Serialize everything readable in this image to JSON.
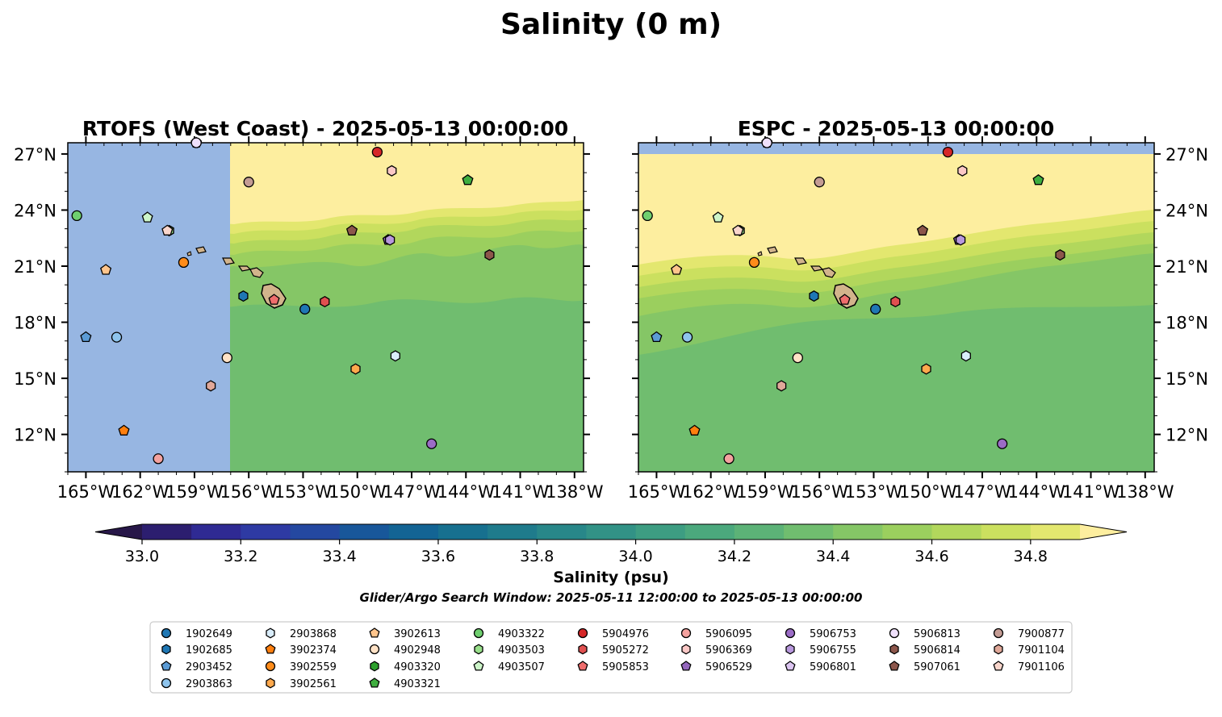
{
  "figure": {
    "title": "Salinity (0 m)",
    "window_text": "Glider/Argo Search Window: 2025-05-11 12:00:00 to 2025-05-13 00:00:00"
  },
  "panels": [
    {
      "id": "rtofs",
      "title": "RTOFS (West Coast) - 2025-05-13 00:00:00",
      "lat_labels_side": "left",
      "land_mask_west_of_lon": -157.4,
      "no_data_color": "#97b6e2"
    },
    {
      "id": "espc",
      "title": "ESPC - 2025-05-13 00:00:00",
      "lat_labels_side": "right",
      "no_data_north_of_lat": 27.1,
      "no_data_color": "#97b6e2"
    }
  ],
  "map_extent": {
    "lon": [
      -166,
      -137.5
    ],
    "lat": [
      10,
      27.6
    ]
  },
  "lon_ticks": [
    -165,
    -162,
    -159,
    -156,
    -153,
    -150,
    -147,
    -144,
    -141,
    -138
  ],
  "lon_tick_labels": [
    "165°W",
    "162°W",
    "159°W",
    "156°W",
    "153°W",
    "150°W",
    "147°W",
    "144°W",
    "141°W",
    "138°W"
  ],
  "lat_ticks": [
    12,
    15,
    18,
    21,
    24,
    27
  ],
  "lat_tick_labels": [
    "12°N",
    "15°N",
    "18°N",
    "21°N",
    "24°N",
    "27°N"
  ],
  "colorbar": {
    "label": "Salinity (psu)",
    "min": 33.0,
    "max": 34.9,
    "step": 0.1,
    "extend": "both",
    "ticks": [
      33.0,
      33.2,
      33.4,
      33.6,
      33.8,
      34.0,
      34.2,
      34.4,
      34.6,
      34.8
    ],
    "tick_labels": [
      "33.0",
      "33.2",
      "33.4",
      "33.6",
      "33.8",
      "34.0",
      "34.2",
      "34.4",
      "34.6",
      "34.8"
    ],
    "colors": [
      "#2c1e6f",
      "#2f2a93",
      "#2e3aa3",
      "#2448a0",
      "#18579a",
      "#136494",
      "#17708f",
      "#1f7b8c",
      "#288789",
      "#329286",
      "#3d9d82",
      "#4ba87d",
      "#5cb277",
      "#70bd6f",
      "#85c666",
      "#9bcf5e",
      "#b2d75c",
      "#cbe05f",
      "#e3e76f"
    ],
    "under_color": "#271748",
    "over_color": "#fdee9f"
  },
  "salinity_field": {
    "north_color": "#fdee9f",
    "band1_color": "#e3e76f",
    "band2_color": "#cbe05f",
    "band3_color": "#b2d75c",
    "band4_color": "#9bcf5e",
    "band5_color": "#85c666",
    "south_color": "#70bd6f"
  },
  "land_color": "#d2b48c",
  "floats": [
    {
      "id": "1902649",
      "marker": "circle",
      "color": "#1f77b4",
      "lon": -152.9,
      "lat": 18.7
    },
    {
      "id": "1902685",
      "marker": "hexagon",
      "color": "#1f77b4",
      "lon": -156.3,
      "lat": 19.4
    },
    {
      "id": "2903452",
      "marker": "pentagon",
      "color": "#5b9bd5",
      "lon": -165.0,
      "lat": 17.2
    },
    {
      "id": "2903863",
      "marker": "circle",
      "color": "#8ec4ed",
      "lon": -163.3,
      "lat": 17.2
    },
    {
      "id": "2903868",
      "marker": "hexagon",
      "color": "#d9edfb",
      "lon": -147.9,
      "lat": 16.2
    },
    {
      "id": "3902374",
      "marker": "pentagon",
      "color": "#ff7f0e",
      "lon": -162.9,
      "lat": 12.2
    },
    {
      "id": "3902559",
      "marker": "circle",
      "color": "#ff8c1a",
      "lon": -159.6,
      "lat": 21.2
    },
    {
      "id": "3902561",
      "marker": "hexagon",
      "color": "#ffa94d",
      "lon": -150.1,
      "lat": 15.5
    },
    {
      "id": "3902613",
      "marker": "pentagon",
      "color": "#ffc58c",
      "lon": -163.9,
      "lat": 20.8
    },
    {
      "id": "4902948",
      "marker": "circle",
      "color": "#ffe2c6",
      "lon": -157.2,
      "lat": 16.1
    },
    {
      "id": "4903320",
      "marker": "hexagon",
      "color": "#2ca02c",
      "lon": -160.4,
      "lat": 22.9
    },
    {
      "id": "4903321",
      "marker": "pentagon",
      "color": "#3fae3f",
      "lon": -143.9,
      "lat": 25.6
    },
    {
      "id": "4903322",
      "marker": "circle",
      "color": "#6fcf6f",
      "lon": -165.5,
      "lat": 23.7
    },
    {
      "id": "4903503",
      "marker": "hexagon",
      "color": "#98df8a",
      "lon": -160.4,
      "lat": 22.9
    },
    {
      "id": "4903507",
      "marker": "pentagon",
      "color": "#cdf5c9",
      "lon": -161.6,
      "lat": 23.6
    },
    {
      "id": "5904976",
      "marker": "circle",
      "color": "#d62728",
      "lon": -148.9,
      "lat": 27.1
    },
    {
      "id": "5905272",
      "marker": "hexagon",
      "color": "#e05050",
      "lon": -151.8,
      "lat": 19.1
    },
    {
      "id": "5905853",
      "marker": "pentagon",
      "color": "#ef6d6d",
      "lon": -154.6,
      "lat": 19.2
    },
    {
      "id": "5906095",
      "marker": "circle",
      "color": "#f4a29f",
      "lon": -161.0,
      "lat": 10.7
    },
    {
      "id": "5906369",
      "marker": "hexagon",
      "color": "#fbc8c6",
      "lon": -148.1,
      "lat": 26.1
    },
    {
      "id": "5906529",
      "marker": "pentagon",
      "color": "#9467bd",
      "lon": -148.3,
      "lat": 22.4
    },
    {
      "id": "5906753",
      "marker": "circle",
      "color": "#9b6cc6",
      "lon": -145.9,
      "lat": 11.5
    },
    {
      "id": "5906755",
      "marker": "hexagon",
      "color": "#b898dd",
      "lon": -148.2,
      "lat": 22.4
    },
    {
      "id": "5906801",
      "marker": "pentagon",
      "color": "#dcc5f1",
      "lon": -158.9,
      "lat": 27.6
    },
    {
      "id": "5906813",
      "marker": "circle",
      "color": "#efe0fb",
      "lon": -158.9,
      "lat": 27.6
    },
    {
      "id": "5906814",
      "marker": "hexagon",
      "color": "#8c564b",
      "lon": -142.7,
      "lat": 21.6
    },
    {
      "id": "5907061",
      "marker": "pentagon",
      "color": "#8c564b",
      "lon": -150.3,
      "lat": 22.9
    },
    {
      "id": "7900877",
      "marker": "circle",
      "color": "#c49c94",
      "lon": -156.0,
      "lat": 25.5
    },
    {
      "id": "7901104",
      "marker": "hexagon",
      "color": "#e0a899",
      "lon": -158.1,
      "lat": 14.6
    },
    {
      "id": "7901106",
      "marker": "pentagon",
      "color": "#f9d6cc",
      "lon": -160.5,
      "lat": 22.9
    }
  ]
}
